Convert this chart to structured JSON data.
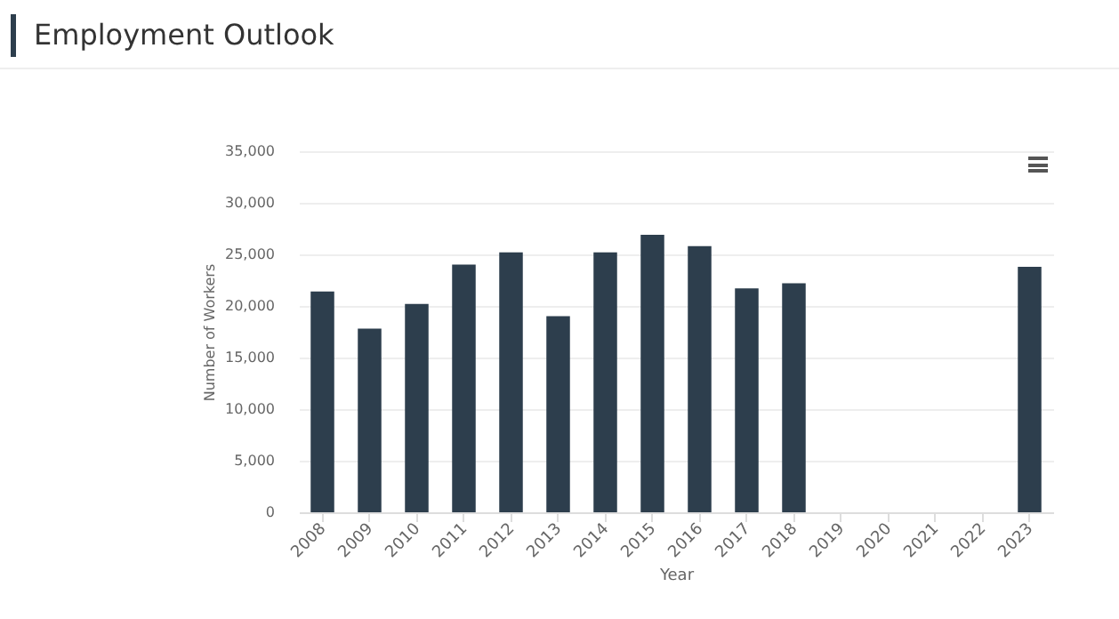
{
  "chart_data": {
    "type": "bar",
    "title": "Employment Outlook",
    "xlabel": "Year",
    "ylabel": "Number of Workers",
    "categories": [
      "2008",
      "2009",
      "2010",
      "2011",
      "2012",
      "2013",
      "2014",
      "2015",
      "2016",
      "2017",
      "2018",
      "2019",
      "2020",
      "2021",
      "2022",
      "2023"
    ],
    "values": [
      21400,
      17800,
      20200,
      24000,
      25200,
      19000,
      25200,
      26900,
      25800,
      21700,
      22200,
      null,
      null,
      null,
      null,
      23800
    ],
    "color": "#2d3e4d",
    "ylim": [
      0,
      35000
    ],
    "yticks": [
      {
        "value": 0,
        "label": "0"
      },
      {
        "value": 5000,
        "label": "5,000"
      },
      {
        "value": 10000,
        "label": "10,000"
      },
      {
        "value": 15000,
        "label": "15,000"
      },
      {
        "value": 20000,
        "label": "20,000"
      },
      {
        "value": 25000,
        "label": "25,000"
      },
      {
        "value": 30000,
        "label": "30,000"
      },
      {
        "value": 35000,
        "label": "35,000"
      }
    ],
    "grid": "y"
  }
}
